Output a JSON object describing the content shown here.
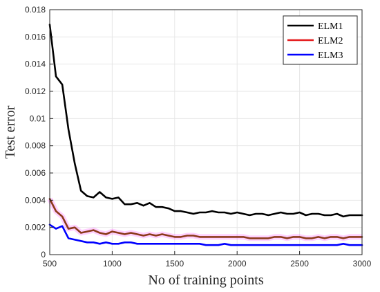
{
  "chart_data": {
    "type": "line",
    "title": "",
    "xlabel": "No of training points",
    "ylabel": "Test error",
    "xlim": [
      500,
      3000
    ],
    "ylim": [
      0,
      0.018
    ],
    "xticks": [
      500,
      1000,
      1500,
      2000,
      2500,
      3000
    ],
    "xtick_labels": [
      "500",
      "1000",
      "1500",
      "2000",
      "2500",
      "3000"
    ],
    "yticks": [
      0,
      0.002,
      0.004,
      0.006,
      0.008,
      0.01,
      0.012,
      0.014,
      0.016,
      0.018
    ],
    "ytick_labels": [
      "0",
      "0.002",
      "0.004",
      "0.006",
      "0.008",
      "0.01",
      "0.012",
      "0.014",
      "0.016",
      "0.018"
    ],
    "grid": true,
    "legend_position": "top-right",
    "x": [
      500,
      550,
      600,
      650,
      700,
      750,
      800,
      850,
      900,
      950,
      1000,
      1050,
      1100,
      1150,
      1200,
      1250,
      1300,
      1350,
      1400,
      1450,
      1500,
      1550,
      1600,
      1650,
      1700,
      1750,
      1800,
      1850,
      1900,
      1950,
      2000,
      2050,
      2100,
      2150,
      2200,
      2250,
      2300,
      2350,
      2400,
      2450,
      2500,
      2550,
      2600,
      2650,
      2700,
      2750,
      2800,
      2850,
      2900,
      2950,
      3000
    ],
    "series": [
      {
        "name": "ELM1",
        "color": "#000000",
        "values": [
          0.0169,
          0.0131,
          0.0125,
          0.0092,
          0.0067,
          0.0047,
          0.0043,
          0.0042,
          0.0046,
          0.0042,
          0.0041,
          0.0042,
          0.0037,
          0.0037,
          0.0038,
          0.0036,
          0.0038,
          0.0035,
          0.0035,
          0.0034,
          0.0032,
          0.0032,
          0.0031,
          0.003,
          0.0031,
          0.0031,
          0.0032,
          0.0031,
          0.0031,
          0.003,
          0.0031,
          0.003,
          0.0029,
          0.003,
          0.003,
          0.0029,
          0.003,
          0.0031,
          0.003,
          0.003,
          0.0031,
          0.0029,
          0.003,
          0.003,
          0.0029,
          0.0029,
          0.003,
          0.0028,
          0.0029,
          0.0029,
          0.0029
        ]
      },
      {
        "name": "ELM2",
        "color": "#e41a1c",
        "values": [
          0.0041,
          0.0032,
          0.0028,
          0.0019,
          0.002,
          0.0016,
          0.0017,
          0.0018,
          0.0016,
          0.0015,
          0.0017,
          0.0016,
          0.0015,
          0.0016,
          0.0015,
          0.0014,
          0.0015,
          0.0014,
          0.0015,
          0.0014,
          0.0013,
          0.0013,
          0.0014,
          0.0014,
          0.0013,
          0.0013,
          0.0013,
          0.0013,
          0.0013,
          0.0013,
          0.0013,
          0.0013,
          0.0012,
          0.0012,
          0.0012,
          0.0012,
          0.0013,
          0.0013,
          0.0012,
          0.0013,
          0.0013,
          0.0012,
          0.0012,
          0.0013,
          0.0012,
          0.0013,
          0.0013,
          0.0012,
          0.0013,
          0.0013,
          0.0013
        ]
      },
      {
        "name": "ELM3",
        "color": "#0000ff",
        "values": [
          0.0022,
          0.0019,
          0.0021,
          0.0012,
          0.0011,
          0.001,
          0.0009,
          0.0009,
          0.0008,
          0.0009,
          0.0008,
          0.0008,
          0.0009,
          0.0009,
          0.0008,
          0.0008,
          0.0008,
          0.0008,
          0.0008,
          0.0008,
          0.0008,
          0.0008,
          0.0008,
          0.0008,
          0.0008,
          0.0007,
          0.0007,
          0.0007,
          0.0008,
          0.0007,
          0.0007,
          0.0007,
          0.0007,
          0.0007,
          0.0007,
          0.0007,
          0.0007,
          0.0007,
          0.0007,
          0.0007,
          0.0007,
          0.0007,
          0.0007,
          0.0007,
          0.0007,
          0.0007,
          0.0007,
          0.0008,
          0.0007,
          0.0007,
          0.0007
        ]
      }
    ]
  }
}
